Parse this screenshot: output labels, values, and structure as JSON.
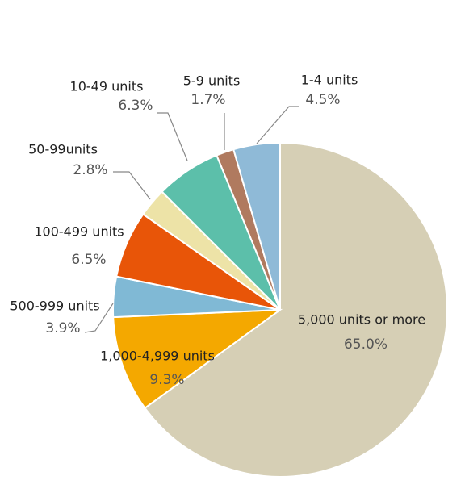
{
  "chart_data": {
    "type": "pie",
    "categories": [
      "5,000 units or more",
      "1,000-4,999 units",
      "500-999 units",
      "100-499 units",
      "50-99units",
      "10-49 units",
      "5-9 units",
      "1-4 units"
    ],
    "values": [
      65.0,
      9.3,
      3.9,
      6.5,
      2.8,
      6.3,
      1.7,
      4.5
    ],
    "value_labels": [
      "65.0%",
      "9.3%",
      "3.9%",
      "6.5%",
      "2.8%",
      "6.3%",
      "1.7%",
      "4.5%"
    ],
    "colors": [
      "#d6cfb5",
      "#f4a800",
      "#80b9d5",
      "#e85508",
      "#ede3a7",
      "#5cbfaa",
      "#b07a5f",
      "#8fbad7"
    ]
  }
}
